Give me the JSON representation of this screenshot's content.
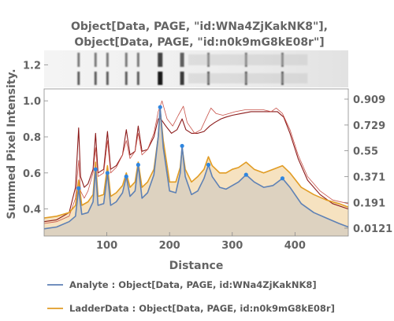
{
  "chart_data": {
    "type": "line",
    "title_line1": "Object[Data, PAGE, \"id:WNa4ZjKakNK8\"],",
    "title_line2": "Object[Data, PAGE, \"id:n0k9mG8kE08r\"]",
    "xlabel": "Distance",
    "ylabel": "Summed Pixel Intensity.",
    "xlim": [
      0,
      485
    ],
    "ylim": [
      0.25,
      1.28
    ],
    "x_ticks": [
      "100",
      "200",
      "300",
      "400"
    ],
    "x_tick_values": [
      100,
      200,
      300,
      400
    ],
    "y_ticks_left": [
      "0.4",
      "0.6",
      "0.8",
      "1.0",
      "1.2"
    ],
    "y_tick_values_left": [
      0.4,
      0.6,
      0.8,
      1.0,
      1.2
    ],
    "y_ticks_right": [
      "0.909",
      "0.729",
      "0.55",
      "0.371",
      "0.191",
      "0.0121"
    ],
    "y_tick_values_right": [
      0.909,
      0.729,
      0.55,
      0.371,
      0.191,
      0.0121
    ],
    "gel_band_positions": [
      55,
      82,
      101,
      131,
      150,
      185,
      220,
      262,
      322,
      380
    ],
    "peaks": [
      {
        "x": 55,
        "y": 0.515
      },
      {
        "x": 82,
        "y": 0.62
      },
      {
        "x": 101,
        "y": 0.6
      },
      {
        "x": 131,
        "y": 0.58
      },
      {
        "x": 150,
        "y": 0.645
      },
      {
        "x": 185,
        "y": 0.965
      },
      {
        "x": 220,
        "y": 0.75
      },
      {
        "x": 262,
        "y": 0.645
      },
      {
        "x": 322,
        "y": 0.59
      },
      {
        "x": 380,
        "y": 0.57
      }
    ],
    "series": [
      {
        "name": "Analyte : Object[Data, PAGE, id:WNa4ZjKakNK8]",
        "color": "#5e81b5",
        "x": [
          0,
          20,
          40,
          50,
          55,
          60,
          70,
          78,
          82,
          86,
          95,
          101,
          106,
          115,
          125,
          131,
          137,
          145,
          150,
          156,
          165,
          175,
          182,
          185,
          190,
          200,
          210,
          217,
          220,
          225,
          235,
          245,
          255,
          262,
          268,
          280,
          290,
          300,
          310,
          322,
          335,
          350,
          365,
          380,
          392,
          410,
          430,
          450,
          470,
          485
        ],
        "y": [
          0.29,
          0.3,
          0.33,
          0.36,
          0.515,
          0.37,
          0.38,
          0.44,
          0.62,
          0.42,
          0.43,
          0.6,
          0.42,
          0.44,
          0.49,
          0.58,
          0.47,
          0.5,
          0.645,
          0.46,
          0.49,
          0.59,
          0.8,
          0.965,
          0.74,
          0.5,
          0.49,
          0.6,
          0.75,
          0.58,
          0.48,
          0.5,
          0.57,
          0.645,
          0.58,
          0.52,
          0.51,
          0.53,
          0.55,
          0.59,
          0.55,
          0.52,
          0.53,
          0.57,
          0.52,
          0.43,
          0.38,
          0.35,
          0.32,
          0.3
        ]
      },
      {
        "name": "LadderData : Object[Data, PAGE, id:n0k9mG8kE08r]",
        "color": "#e19c24",
        "x": [
          0,
          20,
          40,
          50,
          55,
          60,
          70,
          78,
          82,
          86,
          95,
          101,
          106,
          115,
          125,
          131,
          137,
          145,
          150,
          156,
          165,
          175,
          182,
          185,
          190,
          200,
          210,
          217,
          220,
          225,
          235,
          245,
          255,
          262,
          268,
          280,
          290,
          300,
          310,
          322,
          335,
          350,
          365,
          380,
          392,
          410,
          430,
          450,
          470,
          485
        ],
        "y": [
          0.35,
          0.36,
          0.38,
          0.42,
          0.56,
          0.42,
          0.44,
          0.48,
          0.66,
          0.47,
          0.48,
          0.64,
          0.47,
          0.49,
          0.53,
          0.6,
          0.52,
          0.55,
          0.66,
          0.52,
          0.55,
          0.62,
          0.8,
          0.95,
          0.78,
          0.55,
          0.55,
          0.63,
          0.74,
          0.62,
          0.55,
          0.58,
          0.62,
          0.69,
          0.64,
          0.6,
          0.6,
          0.62,
          0.63,
          0.66,
          0.62,
          0.6,
          0.62,
          0.64,
          0.6,
          0.52,
          0.48,
          0.45,
          0.43,
          0.41
        ]
      },
      {
        "color": "#8b1a1a",
        "x": [
          0,
          20,
          40,
          50,
          55,
          58,
          64,
          70,
          78,
          82,
          86,
          95,
          101,
          106,
          115,
          125,
          131,
          137,
          145,
          150,
          156,
          165,
          175,
          182,
          186,
          194,
          203,
          212,
          220,
          226,
          235,
          245,
          255,
          264,
          272,
          282,
          290,
          300,
          315,
          330,
          345,
          360,
          372,
          382,
          392,
          405,
          420,
          440,
          460,
          485
        ],
        "y": [
          0.33,
          0.34,
          0.38,
          0.52,
          0.85,
          0.58,
          0.52,
          0.54,
          0.62,
          0.82,
          0.6,
          0.62,
          0.83,
          0.62,
          0.64,
          0.7,
          0.84,
          0.7,
          0.72,
          0.86,
          0.72,
          0.73,
          0.8,
          0.9,
          0.9,
          0.86,
          0.82,
          0.84,
          0.9,
          0.84,
          0.82,
          0.82,
          0.83,
          0.86,
          0.88,
          0.9,
          0.91,
          0.92,
          0.93,
          0.94,
          0.94,
          0.94,
          0.94,
          0.91,
          0.82,
          0.68,
          0.56,
          0.48,
          0.43,
          0.4
        ]
      },
      {
        "color": "#c8534a",
        "x": [
          0,
          20,
          40,
          50,
          55,
          58,
          64,
          70,
          78,
          82,
          86,
          95,
          101,
          106,
          115,
          125,
          131,
          137,
          145,
          150,
          156,
          165,
          175,
          182,
          188,
          196,
          205,
          214,
          222,
          228,
          240,
          250,
          258,
          266,
          274,
          285,
          295,
          305,
          320,
          335,
          350,
          362,
          370,
          380,
          392,
          405,
          420,
          440,
          460,
          485
        ],
        "y": [
          0.32,
          0.33,
          0.36,
          0.46,
          0.67,
          0.5,
          0.46,
          0.5,
          0.6,
          0.74,
          0.58,
          0.6,
          0.78,
          0.6,
          0.63,
          0.7,
          0.78,
          0.68,
          0.72,
          0.82,
          0.7,
          0.73,
          0.82,
          0.94,
          1.0,
          0.9,
          0.86,
          0.92,
          0.97,
          0.88,
          0.82,
          0.84,
          0.9,
          0.96,
          0.93,
          0.92,
          0.93,
          0.94,
          0.95,
          0.95,
          0.95,
          0.94,
          0.96,
          0.93,
          0.84,
          0.7,
          0.58,
          0.5,
          0.45,
          0.43
        ]
      }
    ],
    "legend": [
      {
        "label": "Analyte : Object[Data, PAGE, id:WNa4ZjKakNK8]",
        "color": "#5e81b5"
      },
      {
        "label": "LadderData : Object[Data, PAGE, id:n0k9mG8kE08r]",
        "color": "#e19c24"
      }
    ],
    "legend_position": "bottom",
    "grid": false
  }
}
